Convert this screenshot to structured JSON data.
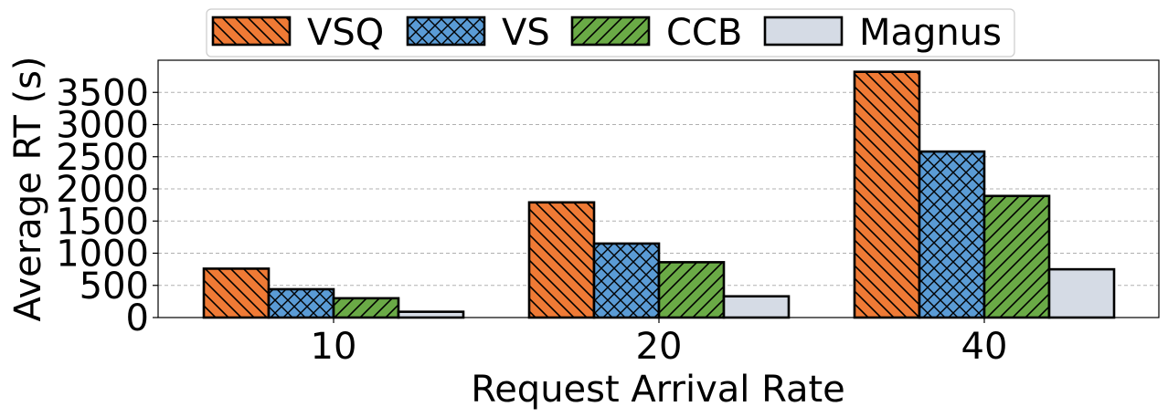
{
  "chart_data": {
    "type": "bar",
    "categories": [
      "10",
      "20",
      "40"
    ],
    "series": [
      {
        "name": "VSQ",
        "values": [
          760,
          1790,
          3820
        ],
        "color": "#ef7a35",
        "hatch": "backslash"
      },
      {
        "name": "VS",
        "values": [
          440,
          1150,
          2580
        ],
        "color": "#5a9bd5",
        "hatch": "crosshatch"
      },
      {
        "name": "CCB",
        "values": [
          300,
          860,
          1890
        ],
        "color": "#6aaa46",
        "hatch": "slash"
      },
      {
        "name": "Magnus",
        "values": [
          90,
          330,
          750
        ],
        "color": "#d5dbe5",
        "hatch": "none"
      }
    ],
    "title": "",
    "xlabel": "Request Arrival Rate",
    "ylabel": "Average RT (s)",
    "ylim": [
      0,
      4000
    ],
    "yticks": [
      0,
      500,
      1000,
      1500,
      2000,
      2500,
      3000,
      3500
    ],
    "grid": "y-dashed",
    "legend_position": "top"
  }
}
